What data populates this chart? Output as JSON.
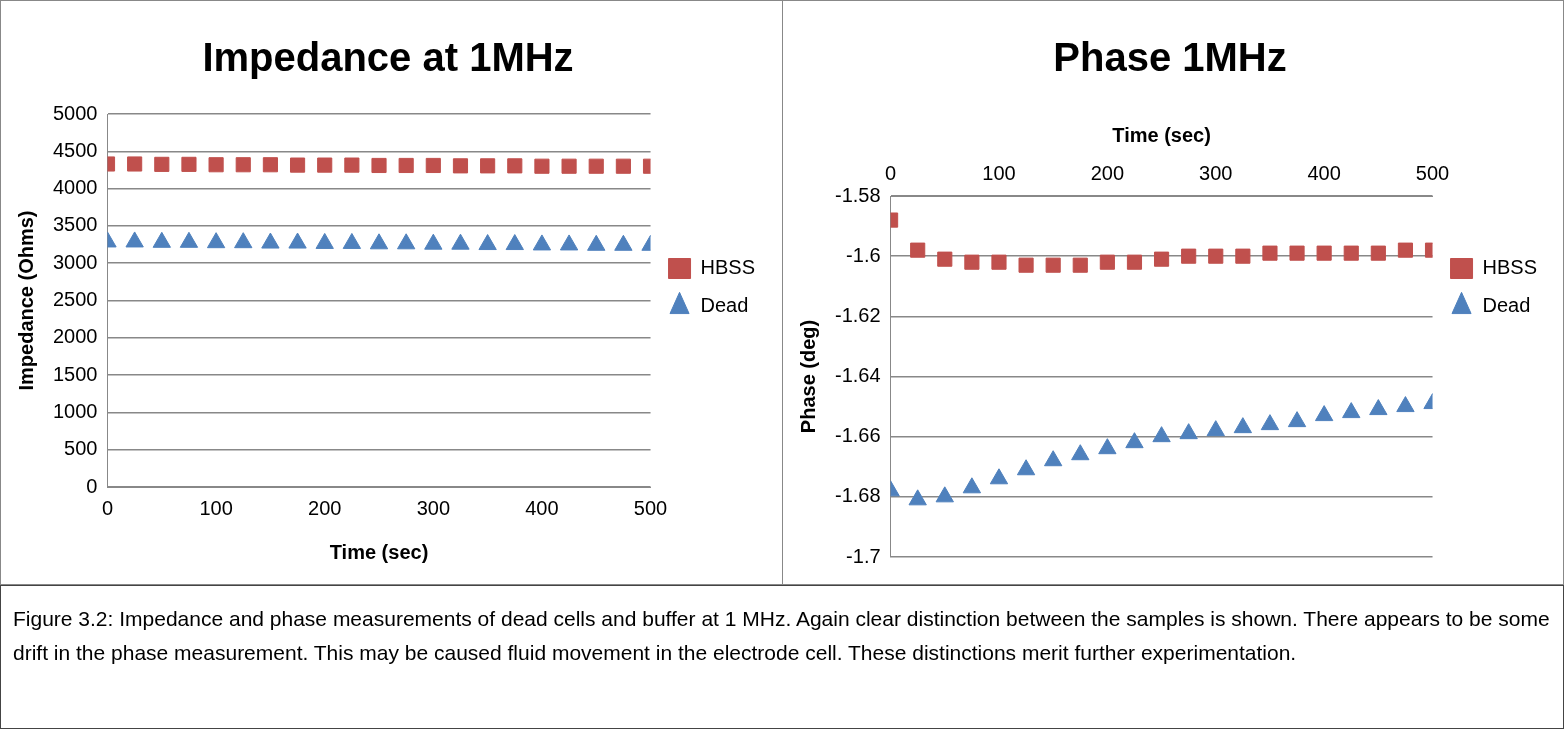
{
  "chart_data": [
    {
      "type": "scatter",
      "title": "Impedance at 1MHz",
      "xlabel": "Time (sec)",
      "ylabel": "Impedance (Ohms)",
      "x": [
        0,
        25,
        50,
        75,
        100,
        125,
        150,
        175,
        200,
        225,
        250,
        275,
        300,
        325,
        350,
        375,
        400,
        425,
        450,
        475,
        500
      ],
      "series": [
        {
          "name": "HBSS",
          "color": "#c0504d",
          "marker": "square",
          "values": [
            4330,
            4330,
            4325,
            4325,
            4320,
            4320,
            4320,
            4315,
            4315,
            4315,
            4310,
            4310,
            4310,
            4305,
            4305,
            4305,
            4300,
            4300,
            4300,
            4300,
            4300
          ]
        },
        {
          "name": "Dead",
          "color": "#4f81bd",
          "marker": "triangle",
          "values": [
            3285,
            3285,
            3280,
            3280,
            3275,
            3275,
            3270,
            3270,
            3265,
            3265,
            3260,
            3260,
            3255,
            3255,
            3250,
            3250,
            3245,
            3245,
            3240,
            3240,
            3240
          ]
        }
      ],
      "xlim": [
        0,
        500
      ],
      "xticks": [
        0,
        100,
        200,
        300,
        400,
        500
      ],
      "ylim": [
        0,
        5000
      ],
      "yticks": [
        0,
        500,
        1000,
        1500,
        2000,
        2500,
        3000,
        3500,
        4000,
        4500,
        5000
      ],
      "grid": "y",
      "legend": "right",
      "annotations": [
        "Figure 3.2:  Impedance and phase measurements of dead cells and buffer at 1 MHz.  Again clear distinction between the samples is shown.  There appears to be some drift in the phase measurement.  This may be caused fluid movement in the electrode cell.  These distinctions merit further experimentation."
      ]
    },
    {
      "type": "scatter",
      "title": "Phase 1MHz",
      "xlabel": "Time (sec)",
      "ylabel": "Phase (deg)",
      "x": [
        0,
        25,
        50,
        75,
        100,
        125,
        150,
        175,
        200,
        225,
        250,
        275,
        300,
        325,
        350,
        375,
        400,
        425,
        450,
        475,
        500
      ],
      "series": [
        {
          "name": "HBSS",
          "color": "#c0504d",
          "marker": "square",
          "values": [
            -1.588,
            -1.598,
            -1.601,
            -1.602,
            -1.602,
            -1.603,
            -1.603,
            -1.603,
            -1.602,
            -1.602,
            -1.601,
            -1.6,
            -1.6,
            -1.6,
            -1.599,
            -1.599,
            -1.599,
            -1.599,
            -1.599,
            -1.598,
            -1.598
          ]
        },
        {
          "name": "Dead",
          "color": "#4f81bd",
          "marker": "triangle",
          "values": [
            -1.678,
            -1.681,
            -1.68,
            -1.677,
            -1.674,
            -1.671,
            -1.668,
            -1.666,
            -1.664,
            -1.662,
            -1.66,
            -1.659,
            -1.658,
            -1.657,
            -1.656,
            -1.655,
            -1.653,
            -1.652,
            -1.651,
            -1.65,
            -1.649
          ]
        }
      ],
      "xlim": [
        0,
        500
      ],
      "xticks": [
        0,
        100,
        200,
        300,
        400,
        500
      ],
      "ylim": [
        -1.7,
        -1.58
      ],
      "yticks": [
        -1.7,
        -1.68,
        -1.66,
        -1.64,
        -1.62,
        -1.6,
        -1.58
      ],
      "grid": "y",
      "legend": "right"
    }
  ]
}
